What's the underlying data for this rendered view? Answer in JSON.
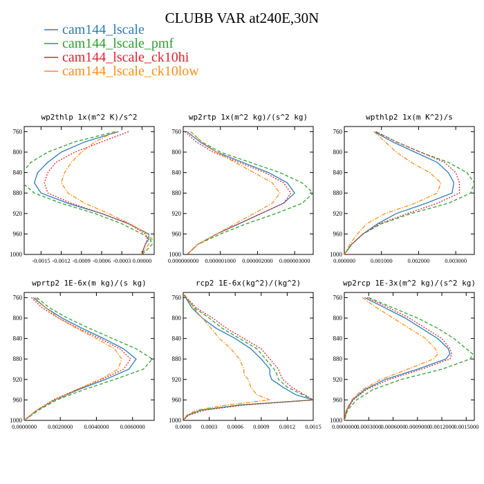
{
  "figure": {
    "title": "CLUBB VAR at240E,30N",
    "legend": [
      {
        "label": "cam144_lscale",
        "color": "#2a7bb8",
        "dash": ""
      },
      {
        "label": "cam144_lscale_pmf",
        "color": "#2ca02c",
        "dash": "5,3"
      },
      {
        "label": "cam144_lscale_ck10hi",
        "color": "#e0202a",
        "dash": "2,2"
      },
      {
        "label": "cam144_lscale_ck10low",
        "color": "#ff8c1a",
        "dash": "6,2,1.5,2"
      }
    ]
  },
  "chart_data": [
    {
      "type": "line",
      "title": "wp2thlp  1x(m^2 K)/s^2",
      "xlim": [
        -0.00175,
        0.00018
      ],
      "ylim": [
        1000,
        750
      ],
      "xticks": [
        -0.0015,
        -0.0012,
        -0.0009,
        -0.0006,
        -0.0003,
        0.0
      ],
      "xtick_labels": [
        "-0.0015",
        "-0.0012",
        "-0.0009",
        "-0.0006",
        "-0.0003",
        "0.00000"
      ],
      "yticks": [
        760,
        800,
        840,
        880,
        920,
        960,
        1000
      ],
      "y": [
        760,
        780,
        800,
        820,
        840,
        860,
        880,
        900,
        920,
        940,
        960,
        970,
        980,
        990,
        1000
      ],
      "series": [
        {
          "name": "cam144_lscale",
          "x": [
            -0.00035,
            -0.00085,
            -0.0012,
            -0.0014,
            -0.00155,
            -0.0016,
            -0.0015,
            -0.0011,
            -0.0006,
            -0.0002,
            0.0001,
            0.0001,
            5e-05,
            2e-05,
            0.0
          ]
        },
        {
          "name": "cam144_lscale_pmf",
          "x": [
            -0.0004,
            -0.001,
            -0.0014,
            -0.00165,
            -0.00178,
            -0.00178,
            -0.0016,
            -0.0012,
            -0.0007,
            -0.0003,
            0.0,
            0.00012,
            0.00015,
            8e-05,
            0.0
          ]
        },
        {
          "name": "cam144_lscale_ck10hi",
          "x": [
            -0.0002,
            -0.0006,
            -0.001,
            -0.00128,
            -0.0014,
            -0.00145,
            -0.0014,
            -0.00105,
            -0.0006,
            -0.0002,
            5e-05,
            8e-05,
            5e-05,
            2e-05,
            0.0
          ]
        },
        {
          "name": "cam144_lscale_ck10low",
          "x": [
            -0.0004,
            -0.0007,
            -0.0009,
            -0.00105,
            -0.00115,
            -0.0012,
            -0.0011,
            -0.00085,
            -0.0005,
            -0.00018,
            8e-05,
            0.00015,
            0.0001,
            4e-05,
            0.0
          ]
        }
      ]
    },
    {
      "type": "line",
      "title": "wp2rtp  1x(m^2 kg)/(s^2 kg)",
      "xlim": [
        0.0,
        3.5e-06
      ],
      "ylim": [
        1000,
        750
      ],
      "xticks": [
        0.0,
        1e-06,
        2e-06,
        3e-06
      ],
      "xtick_labels": [
        "0.000000000",
        "0.000001000",
        "0.000002000",
        "0.000003000"
      ],
      "yticks": [
        760,
        800,
        840,
        880,
        920,
        960,
        1000
      ],
      "y": [
        760,
        780,
        800,
        820,
        840,
        860,
        880,
        900,
        920,
        940,
        960,
        980,
        1000
      ],
      "series": [
        {
          "name": "cam144_lscale",
          "x": [
            1e-07,
            4.5e-07,
            9e-07,
            1.6e-06,
            2.3e-06,
            2.8e-06,
            3e-06,
            2.7e-06,
            2.1e-06,
            1.5e-06,
            9e-07,
            4e-07,
            1e-07
          ]
        },
        {
          "name": "cam144_lscale_pmf",
          "x": [
            2e-07,
            5e-07,
            1e-06,
            1.8e-06,
            2.6e-06,
            3.2e-06,
            3.5e-06,
            3.2e-06,
            2.5e-06,
            1.7e-06,
            1e-06,
            4e-07,
            1e-07
          ]
        },
        {
          "name": "cam144_lscale_ck10hi",
          "x": [
            5e-08,
            3.5e-07,
            8e-07,
            1.5e-06,
            2.2e-06,
            2.7e-06,
            2.9e-06,
            2.7e-06,
            2.1e-06,
            1.5e-06,
            9e-07,
            4e-07,
            1e-07
          ]
        },
        {
          "name": "cam144_lscale_ck10low",
          "x": [
            2e-07,
            5e-07,
            9e-07,
            1.4e-06,
            1.9e-06,
            2.4e-06,
            2.6e-06,
            2.4e-06,
            1.9e-06,
            1.4e-06,
            9e-07,
            4e-07,
            1e-07
          ]
        }
      ]
    },
    {
      "type": "line",
      "title": "wpthlp2  1x(m K^2)/s",
      "xlim": [
        0.0,
        0.0035
      ],
      "ylim": [
        1000,
        750
      ],
      "xticks": [
        0.0,
        0.001,
        0.002,
        0.003
      ],
      "xtick_labels": [
        "0.000000",
        "0.001000",
        "0.002000",
        "0.003000"
      ],
      "yticks": [
        760,
        800,
        840,
        880,
        920,
        960,
        1000
      ],
      "y": [
        760,
        780,
        800,
        820,
        840,
        860,
        880,
        900,
        920,
        940,
        960,
        980,
        1000
      ],
      "series": [
        {
          "name": "cam144_lscale",
          "x": [
            0.0008,
            0.0013,
            0.0019,
            0.0025,
            0.0028,
            0.00295,
            0.0029,
            0.0022,
            0.0014,
            0.0009,
            0.0005,
            0.0002,
            0.0
          ]
        },
        {
          "name": "cam144_lscale_pmf",
          "x": [
            0.00085,
            0.0014,
            0.00205,
            0.0028,
            0.0033,
            0.0035,
            0.0034,
            0.0028,
            0.0018,
            0.001,
            0.0005,
            0.0002,
            0.0
          ]
        },
        {
          "name": "cam144_lscale_ck10hi",
          "x": [
            0.00085,
            0.0014,
            0.00205,
            0.0027,
            0.003,
            0.0031,
            0.0031,
            0.0025,
            0.0017,
            0.00095,
            0.0005,
            0.0002,
            0.0
          ]
        },
        {
          "name": "cam144_lscale_ck10low",
          "x": [
            0.0008,
            0.0011,
            0.0014,
            0.0018,
            0.0023,
            0.0026,
            0.0025,
            0.0019,
            0.0011,
            0.0006,
            0.00035,
            0.00015,
            0.0
          ]
        }
      ]
    },
    {
      "type": "line",
      "title": "wprtp2  1E-6x(m kg)/(s kg)",
      "xlim": [
        0.0,
        0.0072
      ],
      "ylim": [
        1000,
        750
      ],
      "xticks": [
        0.0,
        0.002,
        0.004,
        0.006
      ],
      "xtick_labels": [
        "0.0000000",
        "0.0020000",
        "0.0040000",
        "0.0060000"
      ],
      "yticks": [
        760,
        800,
        840,
        880,
        920,
        960,
        1000
      ],
      "y": [
        760,
        780,
        800,
        820,
        840,
        860,
        880,
        900,
        920,
        940,
        960,
        980,
        1000
      ],
      "series": [
        {
          "name": "cam144_lscale",
          "x": [
            0.0005,
            0.0012,
            0.0021,
            0.0032,
            0.0044,
            0.0055,
            0.0062,
            0.0058,
            0.0045,
            0.003,
            0.0017,
            0.0007,
            0.0
          ]
        },
        {
          "name": "cam144_lscale_pmf",
          "x": [
            0.0007,
            0.0014,
            0.0024,
            0.0036,
            0.0049,
            0.0062,
            0.0071,
            0.0066,
            0.005,
            0.0033,
            0.0018,
            0.0008,
            0.0
          ]
        },
        {
          "name": "cam144_lscale_ck10hi",
          "x": [
            0.0004,
            0.001,
            0.0019,
            0.003,
            0.0042,
            0.0053,
            0.0059,
            0.0055,
            0.0043,
            0.0029,
            0.0016,
            0.0007,
            0.0
          ]
        },
        {
          "name": "cam144_lscale_ck10low",
          "x": [
            0.0006,
            0.0012,
            0.0019,
            0.0029,
            0.004,
            0.005,
            0.0054,
            0.0052,
            0.0042,
            0.0029,
            0.0017,
            0.0007,
            0.0
          ]
        }
      ]
    },
    {
      "type": "line",
      "title": "rcp2  1E-6x(kg^2)/(kg^2)",
      "xlim": [
        0.0,
        0.0015
      ],
      "ylim": [
        1000,
        750
      ],
      "xticks": [
        0.0,
        0.0003,
        0.0006,
        0.0009,
        0.0012,
        0.0015
      ],
      "xtick_labels": [
        "0.0000",
        "0.0003",
        "0.0006",
        "0.0009",
        "0.0012",
        "0.0015"
      ],
      "yticks": [
        760,
        800,
        840,
        880,
        920,
        960,
        1000
      ],
      "y": [
        755,
        780,
        800,
        820,
        840,
        860,
        880,
        900,
        910,
        920,
        935,
        950,
        960,
        970,
        980,
        990,
        1000
      ],
      "series": [
        {
          "name": "cam144_lscale",
          "x": [
            1e-05,
            0.0001,
            0.00022,
            0.00038,
            0.0006,
            0.00078,
            0.0009,
            0.001,
            0.001,
            0.00102,
            0.00115,
            0.0013,
            0.0015,
            0.00065,
            0.0002,
            5e-05,
            0.0
          ]
        },
        {
          "name": "cam144_lscale_pmf",
          "x": [
            1e-05,
            0.00013,
            0.0003,
            0.00045,
            0.00065,
            0.00085,
            0.00095,
            0.00105,
            0.00108,
            0.0011,
            0.0012,
            0.00138,
            0.0015,
            0.00065,
            0.0002,
            5e-05,
            0.0
          ]
        },
        {
          "name": "cam144_lscale_ck10hi",
          "x": [
            1e-05,
            0.00015,
            0.00034,
            0.0005,
            0.0007,
            0.0009,
            0.001,
            0.0011,
            0.00112,
            0.00115,
            0.00125,
            0.0014,
            0.0015,
            0.0007,
            0.00025,
            6e-05,
            0.0
          ]
        },
        {
          "name": "cam144_lscale_ck10low",
          "x": [
            2e-05,
            0.00012,
            0.00022,
            0.00032,
            0.00042,
            0.00055,
            0.00065,
            0.0007,
            0.0007,
            0.00075,
            0.00078,
            0.00085,
            0.001,
            0.0005,
            0.00015,
            4e-05,
            0.0
          ]
        }
      ]
    },
    {
      "type": "line",
      "title": "wp2rcp  1E-3x(m^2 kg)/(s^2 kg)",
      "xlim": [
        0.0,
        0.0016
      ],
      "ylim": [
        1000,
        750
      ],
      "xticks": [
        0.0,
        0.0003,
        0.0006,
        0.0009,
        0.0012,
        0.0015
      ],
      "xtick_labels": [
        "0.0000000",
        "0.0003000",
        "0.0006000",
        "0.0009000",
        "0.0012000",
        "0.0015000"
      ],
      "yticks": [
        760,
        800,
        840,
        880,
        920,
        960,
        1000
      ],
      "y": [
        760,
        780,
        800,
        820,
        840,
        860,
        870,
        880,
        900,
        920,
        940,
        960,
        980,
        1000
      ],
      "series": [
        {
          "name": "cam144_lscale",
          "x": [
            0.00025,
            0.0005,
            0.00075,
            0.00095,
            0.00115,
            0.00128,
            0.0013,
            0.00125,
            0.0009,
            0.0005,
            0.00025,
            0.0001,
            3e-05,
            0.0
          ]
        },
        {
          "name": "cam144_lscale_pmf",
          "x": [
            0.0003,
            0.0006,
            0.0009,
            0.00115,
            0.00135,
            0.0015,
            0.00158,
            0.00155,
            0.0012,
            0.0007,
            0.00035,
            0.00015,
            4e-05,
            0.0
          ]
        },
        {
          "name": "cam144_lscale_ck10hi",
          "x": [
            0.00028,
            0.00055,
            0.0008,
            0.001,
            0.0012,
            0.0013,
            0.00132,
            0.0013,
            0.00095,
            0.00055,
            0.00027,
            0.00011,
            3e-05,
            0.0
          ]
        },
        {
          "name": "cam144_lscale_ck10low",
          "x": [
            0.00022,
            0.0004,
            0.0006,
            0.0008,
            0.001,
            0.00112,
            0.00115,
            0.0011,
            0.00078,
            0.00045,
            0.00022,
            9e-05,
            2e-05,
            0.0
          ]
        }
      ]
    }
  ]
}
